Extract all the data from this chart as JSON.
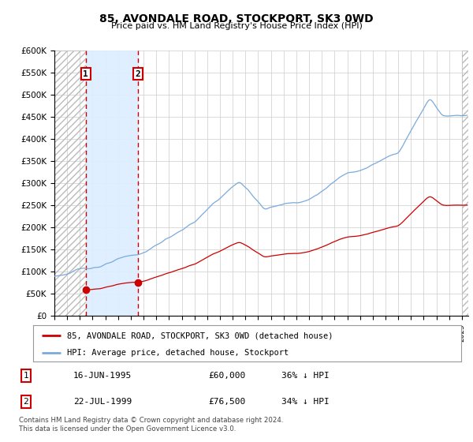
{
  "title": "85, AVONDALE ROAD, STOCKPORT, SK3 0WD",
  "subtitle": "Price paid vs. HM Land Registry's House Price Index (HPI)",
  "sale1_year": 1995.458,
  "sale1_price": 60000,
  "sale2_year": 1999.542,
  "sale2_price": 76500,
  "legend_line1": "85, AVONDALE ROAD, STOCKPORT, SK3 0WD (detached house)",
  "legend_line2": "HPI: Average price, detached house, Stockport",
  "table_row1_num": "1",
  "table_row1_date": "16-JUN-1995",
  "table_row1_price": "£60,000",
  "table_row1_hpi": "36% ↓ HPI",
  "table_row2_num": "2",
  "table_row2_date": "22-JUL-1999",
  "table_row2_price": "£76,500",
  "table_row2_hpi": "34% ↓ HPI",
  "footnote": "Contains HM Land Registry data © Crown copyright and database right 2024.\nThis data is licensed under the Open Government Licence v3.0.",
  "hpi_color": "#7aaadd",
  "price_color": "#cc0000",
  "vline_color": "#cc0000",
  "highlight_color": "#ddeeff",
  "hatch_color": "#bbbbbb",
  "ylim_min": 0,
  "ylim_max": 600000,
  "xmin": 1993,
  "xmax": 2025.5
}
